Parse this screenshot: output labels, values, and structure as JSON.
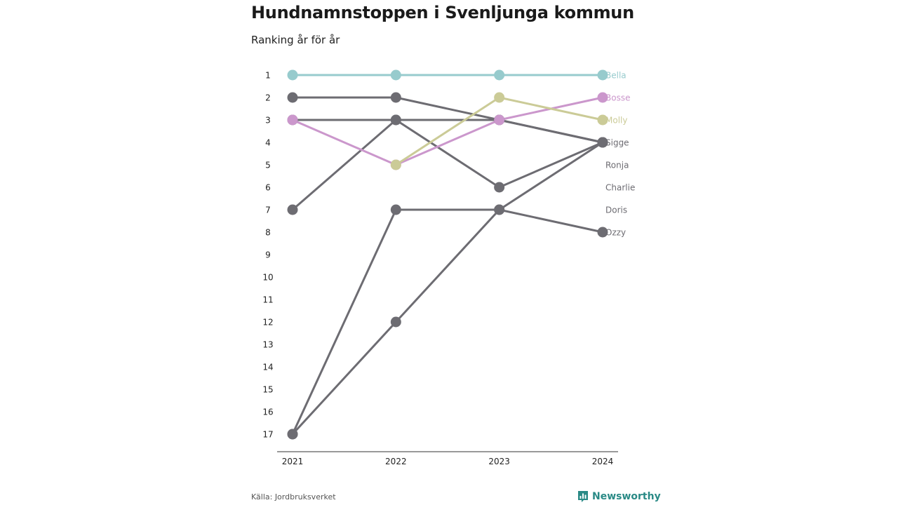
{
  "header": {
    "title": "Hundnamnstoppen i Svenljunga kommun",
    "subtitle": "Ranking år för år"
  },
  "footer": {
    "source": "Källa: Jordbruksverket",
    "brand": "Newsworthy",
    "brand_icon": "bar-chart-logo-icon"
  },
  "colors": {
    "background": "#ffffff",
    "default_series": "#6d6c72",
    "brand": "#2a8a86"
  },
  "chart_data": {
    "type": "line",
    "subtype": "bump-chart",
    "title": "Hundnamnstoppen i Svenljunga kommun",
    "subtitle": "Ranking år för år",
    "x": [
      "2021",
      "2022",
      "2023",
      "2024"
    ],
    "y_ticks": [
      1,
      2,
      3,
      4,
      5,
      6,
      7,
      8,
      9,
      10,
      11,
      12,
      13,
      14,
      15,
      16,
      17
    ],
    "ylim": [
      1,
      17
    ],
    "y_inverted": true,
    "grid": false,
    "legend": "direct-labels-right",
    "series": [
      {
        "name": "Bella",
        "color": "#97cbcd",
        "values": [
          1,
          1,
          1,
          1
        ]
      },
      {
        "name": "Bosse",
        "color": "#cb97cc",
        "values": [
          3,
          5,
          3,
          2
        ]
      },
      {
        "name": "Molly",
        "color": "#cbcb97",
        "values": [
          null,
          5,
          2,
          3
        ]
      },
      {
        "name": "Sigge",
        "color": "#6d6c72",
        "values": [
          2,
          2,
          3,
          4
        ]
      },
      {
        "name": "Ronja",
        "color": "#6d6c72",
        "values": [
          7,
          3,
          3,
          4
        ]
      },
      {
        "name": "Charlie",
        "color": "#6d6c72",
        "values": [
          3,
          3,
          6,
          4
        ]
      },
      {
        "name": "Doris",
        "color": "#6d6c72",
        "values": [
          17,
          12,
          7,
          4
        ]
      },
      {
        "name": "Ozzy",
        "color": "#6d6c72",
        "values": [
          17,
          7,
          7,
          8
        ]
      }
    ],
    "end_labels": [
      {
        "text": "Bella",
        "color": "#97cbcd",
        "rank": 1
      },
      {
        "text": "Bosse",
        "color": "#cb97cc",
        "rank": 2
      },
      {
        "text": "Molly",
        "color": "#cbcb97",
        "rank": 3
      },
      {
        "text": "Sigge",
        "color": "#6d6c72",
        "rank": 4
      },
      {
        "text": "Ronja",
        "color": "#6d6c72",
        "rank": 5
      },
      {
        "text": "Charlie",
        "color": "#6d6c72",
        "rank": 6
      },
      {
        "text": "Doris",
        "color": "#6d6c72",
        "rank": 7
      },
      {
        "text": "Ozzy",
        "color": "#6d6c72",
        "rank": 8
      }
    ]
  }
}
